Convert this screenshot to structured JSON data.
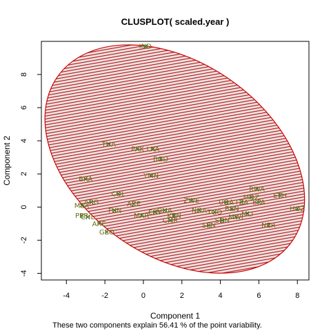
{
  "chart_data": {
    "type": "scatter",
    "title": "CLUSPLOT( scaled.year )",
    "xlabel": "Component 1",
    "ylabel": "Component 2",
    "subtitle": "These two components explain 56.41 % of the point variability.",
    "xlim": [
      -5.3,
      8.6
    ],
    "ylim": [
      -4.4,
      10.0
    ],
    "x_ticks": [
      -4,
      -2,
      0,
      2,
      4,
      6,
      8
    ],
    "y_ticks": [
      -4,
      -2,
      0,
      2,
      4,
      6,
      8
    ],
    "grid": false,
    "colors": {
      "points": "#1b7a1b",
      "labels": "#6b6b1a",
      "cluster_fill": "#b22222",
      "cluster_border": "#cc0000",
      "axes": "#000000"
    },
    "cluster": {
      "center": [
        1.63,
        2.9
      ],
      "semi_axis_major": 8.0,
      "semi_axis_minor": 5.4,
      "angle_deg": -35,
      "hatch": true
    },
    "points": [
      {
        "label": "IND",
        "x": 0.1,
        "y": 9.7
      },
      {
        "label": "THA",
        "x": -1.8,
        "y": 3.8
      },
      {
        "label": "PAK",
        "x": -0.3,
        "y": 3.5
      },
      {
        "label": "LKA",
        "x": 0.5,
        "y": 3.5
      },
      {
        "label": "BGD",
        "x": 0.9,
        "y": 2.9
      },
      {
        "label": "YMN",
        "x": 0.4,
        "y": 1.9
      },
      {
        "label": "BRA",
        "x": -3.0,
        "y": 1.7
      },
      {
        "label": "ETH",
        "x": 7.1,
        "y": 0.7
      },
      {
        "label": "RWA",
        "x": 5.9,
        "y": 1.1
      },
      {
        "label": "HOZ",
        "x": 8.0,
        "y": -0.1
      },
      {
        "label": "ZWE",
        "x": 2.5,
        "y": 0.4
      },
      {
        "label": "SEN",
        "x": 3.4,
        "y": -1.1
      },
      {
        "label": "NER",
        "x": 6.5,
        "y": -1.1
      },
      {
        "label": "COL",
        "x": -1.3,
        "y": 0.8
      },
      {
        "label": "ARE",
        "x": -2.3,
        "y": -1.0
      },
      {
        "label": "GEO",
        "x": -1.9,
        "y": -1.5
      },
      {
        "label": "MEX",
        "x": -3.2,
        "y": 0.1
      },
      {
        "label": "PER",
        "x": -3.2,
        "y": -0.5
      },
      {
        "label": "ARG",
        "x": -2.7,
        "y": 0.3
      },
      {
        "label": "CHL",
        "x": -2.9,
        "y": -0.6
      },
      {
        "label": "AZE",
        "x": -0.5,
        "y": 0.2
      },
      {
        "label": "TUN",
        "x": -1.5,
        "y": -0.2
      },
      {
        "label": "MAR",
        "x": -0.1,
        "y": -0.5
      },
      {
        "label": "EGY",
        "x": 0.6,
        "y": -0.3
      },
      {
        "label": "GHA",
        "x": 1.1,
        "y": -0.2
      },
      {
        "label": "KEN",
        "x": 1.6,
        "y": -0.5
      },
      {
        "label": "CMR",
        "x": 1.4,
        "y": -0.8
      },
      {
        "label": "NGA",
        "x": 2.9,
        "y": -0.2
      },
      {
        "label": "UGA",
        "x": 4.3,
        "y": 0.3
      },
      {
        "label": "TZA",
        "x": 5.1,
        "y": 0.3
      },
      {
        "label": "MLI",
        "x": 5.4,
        "y": -0.4
      },
      {
        "label": "MWI",
        "x": 4.8,
        "y": -0.6
      },
      {
        "label": "BFA",
        "x": 6.0,
        "y": 0.3
      },
      {
        "label": "MOZ",
        "x": 5.6,
        "y": 0.6
      },
      {
        "label": "BEN",
        "x": 4.6,
        "y": -0.1
      },
      {
        "label": "TGO",
        "x": 3.7,
        "y": -0.3
      },
      {
        "label": "SDN",
        "x": 4.1,
        "y": -0.8
      }
    ]
  }
}
